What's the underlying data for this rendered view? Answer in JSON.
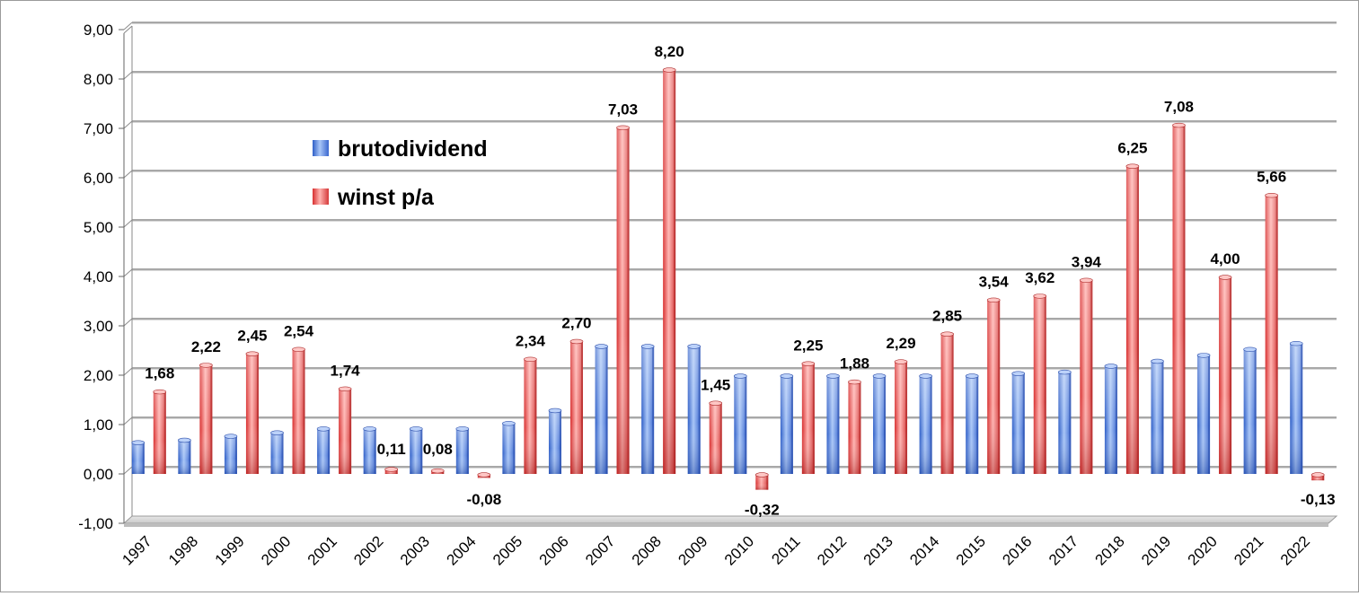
{
  "chart_data": {
    "type": "bar",
    "categories": [
      "1997",
      "1998",
      "1999",
      "2000",
      "2001",
      "2002",
      "2003",
      "2004",
      "2005",
      "2006",
      "2007",
      "2008",
      "2009",
      "2010",
      "2011",
      "2012",
      "2013",
      "2014",
      "2015",
      "2016",
      "2017",
      "2018",
      "2019",
      "2020",
      "2021",
      "2022"
    ],
    "series": [
      {
        "name": "brutodividend",
        "color": "#3f6fd8",
        "values": [
          0.65,
          0.7,
          0.78,
          0.85,
          0.93,
          0.93,
          0.93,
          0.93,
          1.04,
          1.3,
          2.6,
          2.6,
          2.6,
          2.0,
          2.0,
          2.0,
          2.0,
          2.0,
          2.0,
          2.05,
          2.08,
          2.2,
          2.3,
          2.42,
          2.54,
          2.66
        ]
      },
      {
        "name": "winst p/a",
        "color": "#d83a3a",
        "values": [
          1.68,
          2.22,
          2.45,
          2.54,
          1.74,
          0.11,
          0.08,
          -0.08,
          2.34,
          2.7,
          7.03,
          8.2,
          1.45,
          -0.32,
          2.25,
          1.88,
          2.29,
          2.85,
          3.54,
          3.62,
          3.94,
          6.25,
          7.08,
          4.0,
          5.66,
          -0.13
        ],
        "data_labels": [
          "1,68",
          "2,22",
          "2,45",
          "2,54",
          "1,74",
          "0,11",
          "0,08",
          "-0,08",
          "2,34",
          "2,70",
          "7,03",
          "8,20",
          "1,45",
          "-0,32",
          "2,25",
          "1,88",
          "2,29",
          "2,85",
          "3,54",
          "3,62",
          "3,94",
          "6,25",
          "7,08",
          "4,00",
          "5,66",
          "-0,13"
        ]
      }
    ],
    "y_ticks": [
      "-1,00",
      "0,00",
      "1,00",
      "2,00",
      "3,00",
      "4,00",
      "5,00",
      "6,00",
      "7,00",
      "8,00",
      "9,00"
    ],
    "ylim": [
      -1,
      9
    ],
    "grid": true,
    "legend_position": "upper-left inside plot"
  }
}
